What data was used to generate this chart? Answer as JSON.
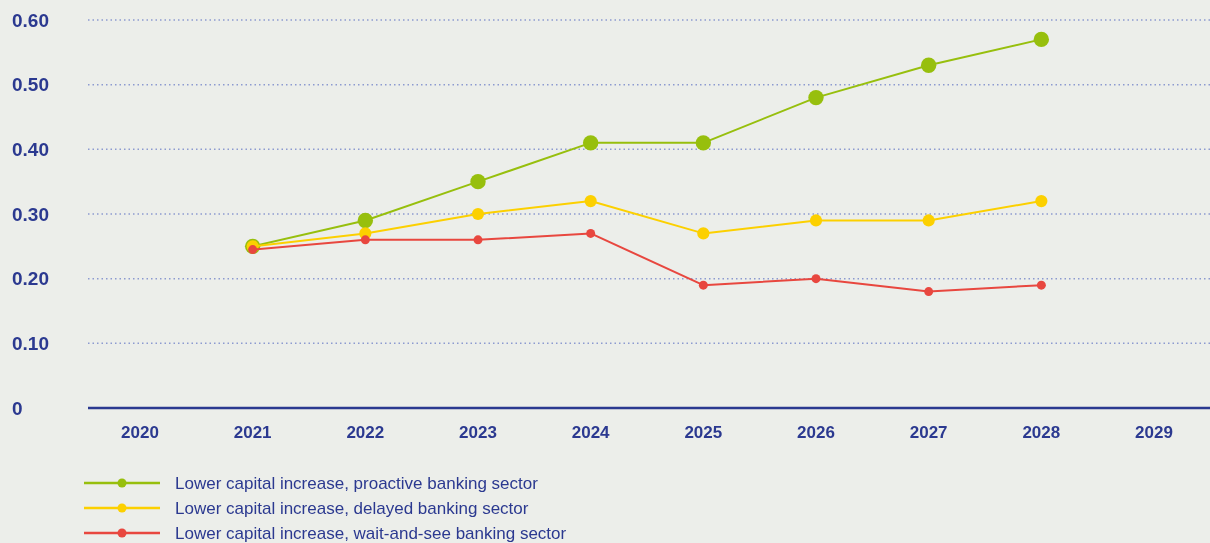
{
  "chart_data": {
    "type": "line",
    "categories": [
      "2020",
      "2021",
      "2022",
      "2023",
      "2024",
      "2025",
      "2026",
      "2027",
      "2028",
      "2029"
    ],
    "series": [
      {
        "name": "Lower capital increase, proactive banking sector",
        "color": "#97bf0d",
        "values": [
          null,
          0.25,
          0.29,
          0.35,
          0.41,
          0.41,
          0.48,
          0.53,
          0.57,
          null
        ]
      },
      {
        "name": "Lower capital increase, delayed banking sector",
        "color": "#fcd000",
        "values": [
          null,
          0.25,
          0.27,
          0.3,
          0.32,
          0.27,
          0.29,
          0.29,
          0.32,
          null
        ]
      },
      {
        "name": "Lower capital increase, wait-and-see banking sector",
        "color": "#e8473f",
        "values": [
          null,
          0.245,
          0.26,
          0.26,
          0.27,
          0.19,
          0.2,
          0.18,
          0.19,
          null
        ]
      }
    ],
    "ylim": [
      0,
      0.6
    ],
    "yticks": [
      0,
      {
        "value": 0.1,
        "label": "0.10"
      },
      {
        "value": 0.2,
        "label": "0.20"
      },
      {
        "value": 0.3,
        "label": "0.30"
      },
      {
        "value": 0.4,
        "label": "0.40"
      },
      {
        "value": 0.5,
        "label": "0.50"
      },
      {
        "value": 0.6,
        "label": "0.60"
      }
    ],
    "grid": "y",
    "legend": "bottom left",
    "marker": "circle",
    "line_style": "solid"
  }
}
